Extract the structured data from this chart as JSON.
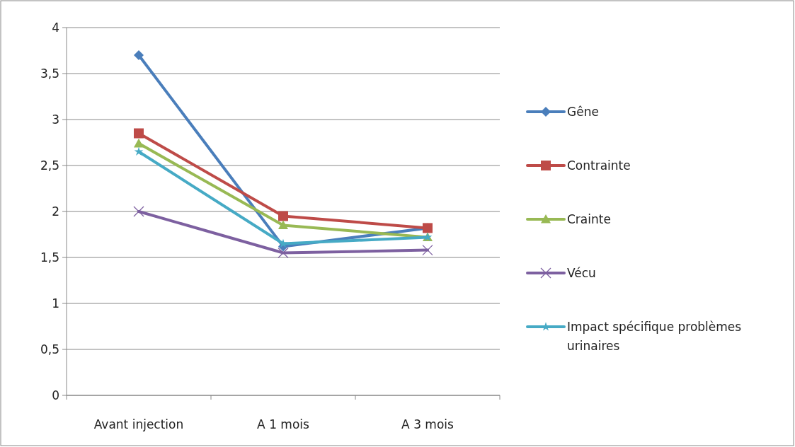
{
  "chart_data": {
    "type": "line",
    "categories": [
      "Avant injection",
      "A 1 mois",
      "A 3 mois"
    ],
    "series": [
      {
        "name": "Gêne",
        "color": "#4a7ebb",
        "marker": "diamond",
        "values": [
          3.7,
          1.62,
          1.82
        ]
      },
      {
        "name": "Contrainte",
        "color": "#be4b48",
        "marker": "square",
        "values": [
          2.85,
          1.95,
          1.82
        ]
      },
      {
        "name": "Crainte",
        "color": "#98b954",
        "marker": "triangle",
        "values": [
          2.74,
          1.85,
          1.72
        ]
      },
      {
        "name": "Vécu",
        "color": "#7d60a0",
        "marker": "cross",
        "values": [
          2.0,
          1.55,
          1.58
        ]
      },
      {
        "name": "Impact spécifique problèmes urinaires",
        "color": "#46aac5",
        "marker": "star",
        "values": [
          2.65,
          1.65,
          1.72
        ]
      }
    ],
    "ylim": [
      0,
      4
    ],
    "yticks": [
      {
        "value": 0,
        "label": "0"
      },
      {
        "value": 0.5,
        "label": "0,5"
      },
      {
        "value": 1,
        "label": "1"
      },
      {
        "value": 1.5,
        "label": "1,5"
      },
      {
        "value": 2,
        "label": "2"
      },
      {
        "value": 2.5,
        "label": "2,5"
      },
      {
        "value": 3,
        "label": "3"
      },
      {
        "value": 3.5,
        "label": "3,5"
      },
      {
        "value": 4,
        "label": "4"
      }
    ],
    "grid": "y",
    "legend": "right",
    "line_style": "solid"
  }
}
